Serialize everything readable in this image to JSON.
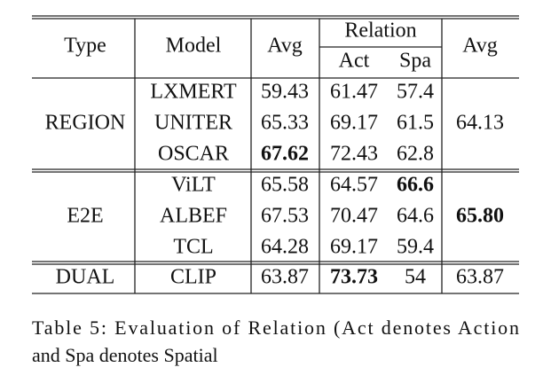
{
  "table": {
    "header": {
      "type": "Type",
      "model": "Model",
      "avg": "Avg",
      "relation": "Relation",
      "act": "Act",
      "spa": "Spa",
      "avg2": "Avg"
    },
    "groups": [
      {
        "type": "REGION",
        "avg": "64.13",
        "avg_bold": false,
        "rows": [
          {
            "cells": [
              "LXMERT",
              "59.43",
              "61.47",
              "57.4"
            ],
            "bold": []
          },
          {
            "cells": [
              "UNITER",
              "65.33",
              "69.17",
              "61.5"
            ],
            "bold": []
          },
          {
            "cells": [
              "OSCAR",
              "67.62",
              "72.43",
              "62.8"
            ],
            "bold": [
              1
            ]
          }
        ]
      },
      {
        "type": "E2E",
        "avg": "65.80",
        "avg_bold": true,
        "rows": [
          {
            "cells": [
              "ViLT",
              "65.58",
              "64.57",
              "66.6"
            ],
            "bold": [
              3
            ]
          },
          {
            "cells": [
              "ALBEF",
              "67.53",
              "70.47",
              "64.6"
            ],
            "bold": []
          },
          {
            "cells": [
              "TCL",
              "64.28",
              "69.17",
              "59.4"
            ],
            "bold": []
          }
        ]
      },
      {
        "type": "DUAL",
        "avg": "63.87",
        "avg_bold": false,
        "rows": [
          {
            "cells": [
              "CLIP",
              "63.87",
              "73.73",
              "54"
            ],
            "bold": [
              2
            ]
          }
        ]
      }
    ]
  },
  "caption": [
    "Table 5: Evaluation of Relation (Act denotes Action",
    "and Spa denotes Spatial"
  ]
}
